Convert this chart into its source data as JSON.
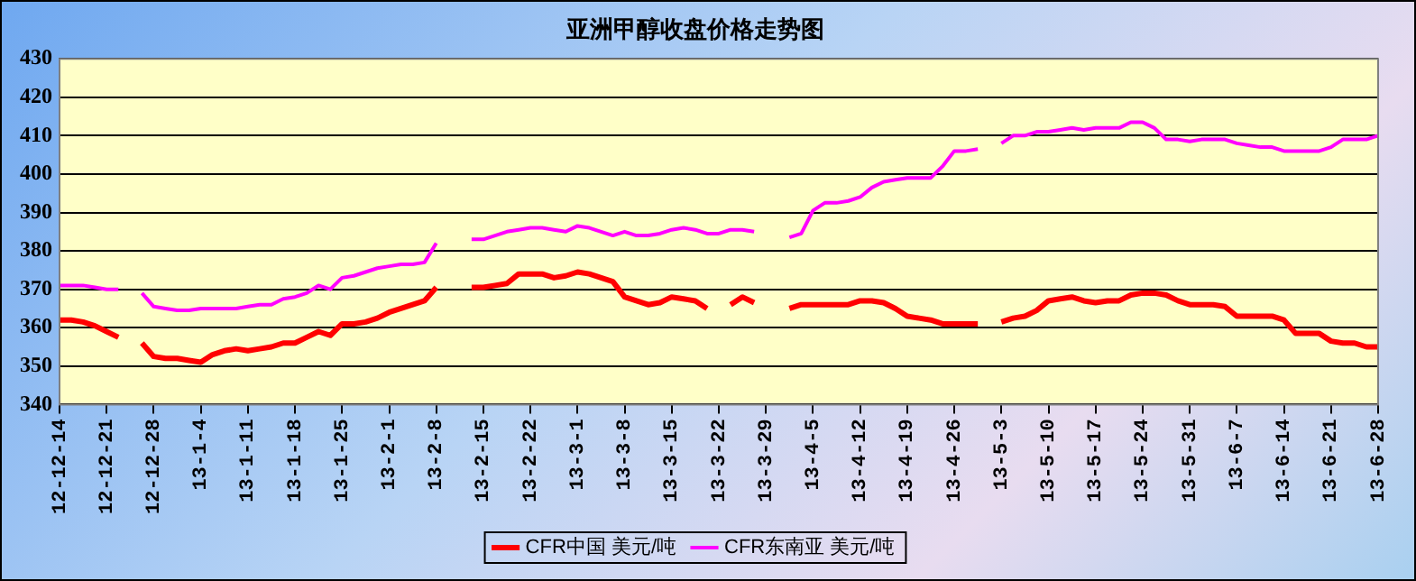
{
  "chart_data": {
    "type": "line",
    "title": "亚洲甲醇收盘价格走势图",
    "categories": [
      "12-12-14",
      null,
      null,
      null,
      "12-12-21",
      null,
      null,
      null,
      "12-12-28",
      null,
      null,
      null,
      "13-1-4",
      null,
      null,
      null,
      "13-1-11",
      null,
      null,
      null,
      "13-1-18",
      null,
      null,
      null,
      "13-1-25",
      null,
      null,
      null,
      "13-2-1",
      null,
      null,
      null,
      "13-2-8",
      null,
      null,
      null,
      "13-2-15",
      null,
      null,
      null,
      "13-2-22",
      null,
      null,
      null,
      "13-3-1",
      null,
      null,
      null,
      "13-3-8",
      null,
      null,
      null,
      "13-3-15",
      null,
      null,
      null,
      "13-3-22",
      null,
      null,
      null,
      "13-3-29",
      null,
      null,
      null,
      "13-4-5",
      null,
      null,
      null,
      "13-4-12",
      null,
      null,
      null,
      "13-4-19",
      null,
      null,
      null,
      "13-4-26",
      null,
      null,
      null,
      "13-5-3",
      null,
      null,
      null,
      "13-5-10",
      null,
      null,
      null,
      "13-5-17",
      null,
      null,
      null,
      "13-5-24",
      null,
      null,
      null,
      "13-5-31",
      null,
      null,
      null,
      "13-6-7",
      null,
      null,
      null,
      "13-6-14",
      null,
      null,
      null,
      "13-6-21",
      null,
      null,
      null,
      "13-6-28"
    ],
    "series": [
      {
        "name": "CFR中国 美元/吨",
        "color": "#ff0000",
        "values": [
          362,
          362,
          361.5,
          360.5,
          359,
          357.5,
          null,
          356,
          352.5,
          352,
          352,
          351.5,
          351,
          353,
          354,
          354.5,
          354,
          354.5,
          355,
          356,
          356,
          357.5,
          359,
          358,
          361,
          361,
          361.5,
          362.5,
          364,
          365,
          366,
          367,
          370.5,
          null,
          null,
          370.5,
          370.5,
          371,
          371.5,
          374,
          374,
          374,
          373,
          373.5,
          374.5,
          374,
          373,
          372,
          368,
          367,
          366,
          366.5,
          368,
          367.5,
          367,
          365,
          null,
          366,
          368,
          366.5,
          null,
          null,
          365,
          366,
          366,
          366,
          366,
          366,
          367,
          367,
          366.5,
          365,
          363,
          362.5,
          362,
          361,
          361,
          361,
          361,
          null,
          361.5,
          362.5,
          363,
          364.5,
          367,
          367.5,
          368,
          367,
          366.5,
          367,
          367,
          368.5,
          369,
          369,
          368.5,
          367,
          366,
          366,
          366,
          365.5,
          363,
          363,
          363,
          363,
          362,
          358.5,
          358.5,
          358.5,
          356.5,
          356,
          356,
          355,
          355
        ]
      },
      {
        "name": "CFR东南亚 美元/吨",
        "color": "#ff00ff",
        "values": [
          371,
          371,
          371,
          370.5,
          370,
          370,
          null,
          369,
          365.5,
          365,
          364.5,
          364.5,
          365,
          365,
          365,
          365,
          365.5,
          366,
          366,
          367.5,
          368,
          369,
          371,
          370,
          373,
          373.5,
          374.5,
          375.5,
          376,
          376.5,
          376.5,
          377,
          382,
          null,
          null,
          383,
          383,
          384,
          385,
          385.5,
          386,
          386,
          385.5,
          385,
          386.5,
          386,
          385,
          384,
          385,
          384,
          384,
          384.5,
          385.5,
          386,
          385.5,
          384.5,
          384.5,
          385.5,
          385.5,
          385,
          null,
          null,
          383.5,
          384.5,
          390.5,
          392.5,
          392.5,
          393,
          394,
          396.5,
          398,
          398.5,
          399,
          399,
          399,
          402,
          406,
          406,
          406.5,
          null,
          408,
          410,
          410,
          411,
          411,
          411.5,
          412,
          411.5,
          412,
          412,
          412,
          413.5,
          413.5,
          412,
          409,
          409,
          408.5,
          409,
          409,
          409,
          408,
          407.5,
          407,
          407,
          406,
          406,
          406,
          406,
          407,
          409,
          409,
          409,
          410
        ]
      }
    ],
    "ylim": [
      340,
      430
    ],
    "yticks": [
      340,
      350,
      360,
      370,
      380,
      390,
      400,
      410,
      420,
      430
    ],
    "grid": "y",
    "legend": "bottom",
    "marker": "none",
    "line_style": "solid"
  }
}
